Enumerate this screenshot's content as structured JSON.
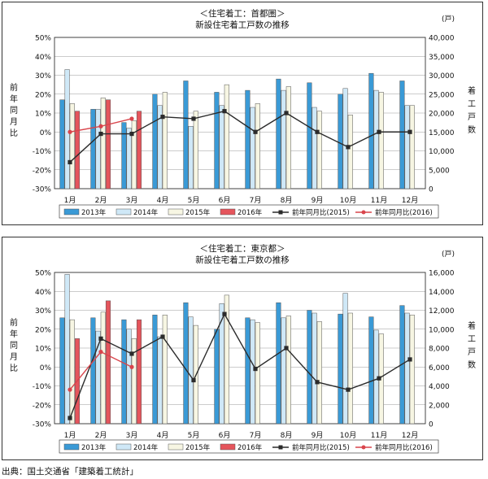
{
  "source": "出典：国土交通省「建築着工統計」",
  "colors": {
    "bar2013": "#3a9ad6",
    "bar2014": "#cfe8f7",
    "bar2015": "#f7f6e3",
    "bar2016": "#e5555c",
    "line2015": "#2b2b2b",
    "line2016": "#d9454c"
  },
  "chart_data": [
    {
      "type": "bar",
      "title": "＜住宅着工：首都圏＞",
      "subtitle": "新設住宅着工戸数の推移",
      "left_axis_label": "前年同月比",
      "right_axis_label": "着工戸数",
      "right_unit": "(戸)",
      "categories": [
        "1月",
        "2月",
        "3月",
        "4月",
        "5月",
        "6月",
        "7月",
        "8月",
        "9月",
        "10月",
        "11月",
        "12月"
      ],
      "left_ticks": [
        "50%",
        "40%",
        "30%",
        "20%",
        "10%",
        "0%",
        "-10%",
        "-20%",
        "-30%"
      ],
      "right_ticks": [
        "40,000",
        "35,000",
        "30,000",
        "25,000",
        "20,000",
        "15,000",
        "10,000",
        "5,000",
        "0"
      ],
      "ylim_left": [
        -30,
        50
      ],
      "ylim_right": [
        0,
        40000
      ],
      "series": [
        {
          "name": "2013年",
          "kind": "bar",
          "values": [
            23500,
            21000,
            17500,
            25000,
            28500,
            25500,
            26000,
            29000,
            28000,
            25000,
            30500,
            28500
          ]
        },
        {
          "name": "2014年",
          "kind": "bar",
          "values": [
            31500,
            21000,
            16000,
            22000,
            16500,
            22000,
            21500,
            26000,
            21500,
            26500,
            26000,
            22000
          ]
        },
        {
          "name": "2015年",
          "kind": "bar",
          "values": [
            22500,
            24000,
            18000,
            25500,
            20500,
            27500,
            22500,
            27000,
            20500,
            19500,
            25500,
            22000
          ]
        },
        {
          "name": "2016年",
          "kind": "bar",
          "values": [
            20500,
            23500,
            20500,
            null,
            null,
            null,
            null,
            null,
            null,
            null,
            null,
            null
          ]
        },
        {
          "name": "前年同月比(2015)",
          "kind": "line",
          "values": [
            -16,
            -1,
            -1,
            8,
            7,
            11,
            0,
            10,
            0,
            -8,
            0,
            0
          ]
        },
        {
          "name": "前年同月比(2016)",
          "kind": "line",
          "values": [
            0,
            3,
            7,
            null,
            null,
            null,
            null,
            null,
            null,
            null,
            null,
            null
          ]
        }
      ]
    },
    {
      "type": "bar",
      "title": "＜住宅着工：東京都＞",
      "subtitle": "新設住宅着工戸数の推移",
      "left_axis_label": "前年同月比",
      "right_axis_label": "着工戸数",
      "right_unit": "(戸)",
      "categories": [
        "1月",
        "2月",
        "3月",
        "4月",
        "5月",
        "6月",
        "7月",
        "8月",
        "9月",
        "10月",
        "11月",
        "12月"
      ],
      "left_ticks": [
        "50%",
        "40%",
        "30%",
        "20%",
        "10%",
        "0%",
        "-10%",
        "-20%",
        "-30%"
      ],
      "right_ticks": [
        "16,000",
        "14,000",
        "12,000",
        "10,000",
        "8,000",
        "6,000",
        "4,000",
        "2,000",
        "0"
      ],
      "ylim_left": [
        -30,
        50
      ],
      "ylim_right": [
        0,
        16000
      ],
      "series": [
        {
          "name": "2013年",
          "kind": "bar",
          "values": [
            11200,
            11200,
            11000,
            11500,
            12800,
            10000,
            11200,
            12800,
            12000,
            11600,
            11300,
            12500
          ]
        },
        {
          "name": "2014年",
          "kind": "bar",
          "values": [
            15800,
            9800,
            10000,
            9200,
            11300,
            12700,
            11000,
            11200,
            11700,
            13800,
            9900,
            11700
          ]
        },
        {
          "name": "2015年",
          "kind": "bar",
          "values": [
            11000,
            11800,
            9000,
            11500,
            10400,
            13600,
            10700,
            11400,
            10800,
            11700,
            9500,
            11500
          ]
        },
        {
          "name": "2016年",
          "kind": "bar",
          "values": [
            9000,
            13000,
            11000,
            null,
            null,
            null,
            null,
            null,
            null,
            null,
            null,
            null
          ]
        },
        {
          "name": "前年同月比(2015)",
          "kind": "line",
          "values": [
            -27,
            15,
            7,
            16,
            -7,
            28,
            -1,
            10,
            -8,
            -12,
            -6,
            4
          ]
        },
        {
          "name": "前年同月比(2016)",
          "kind": "line",
          "values": [
            -12,
            8,
            0,
            null,
            null,
            null,
            null,
            null,
            null,
            null,
            null,
            null
          ]
        }
      ]
    }
  ]
}
